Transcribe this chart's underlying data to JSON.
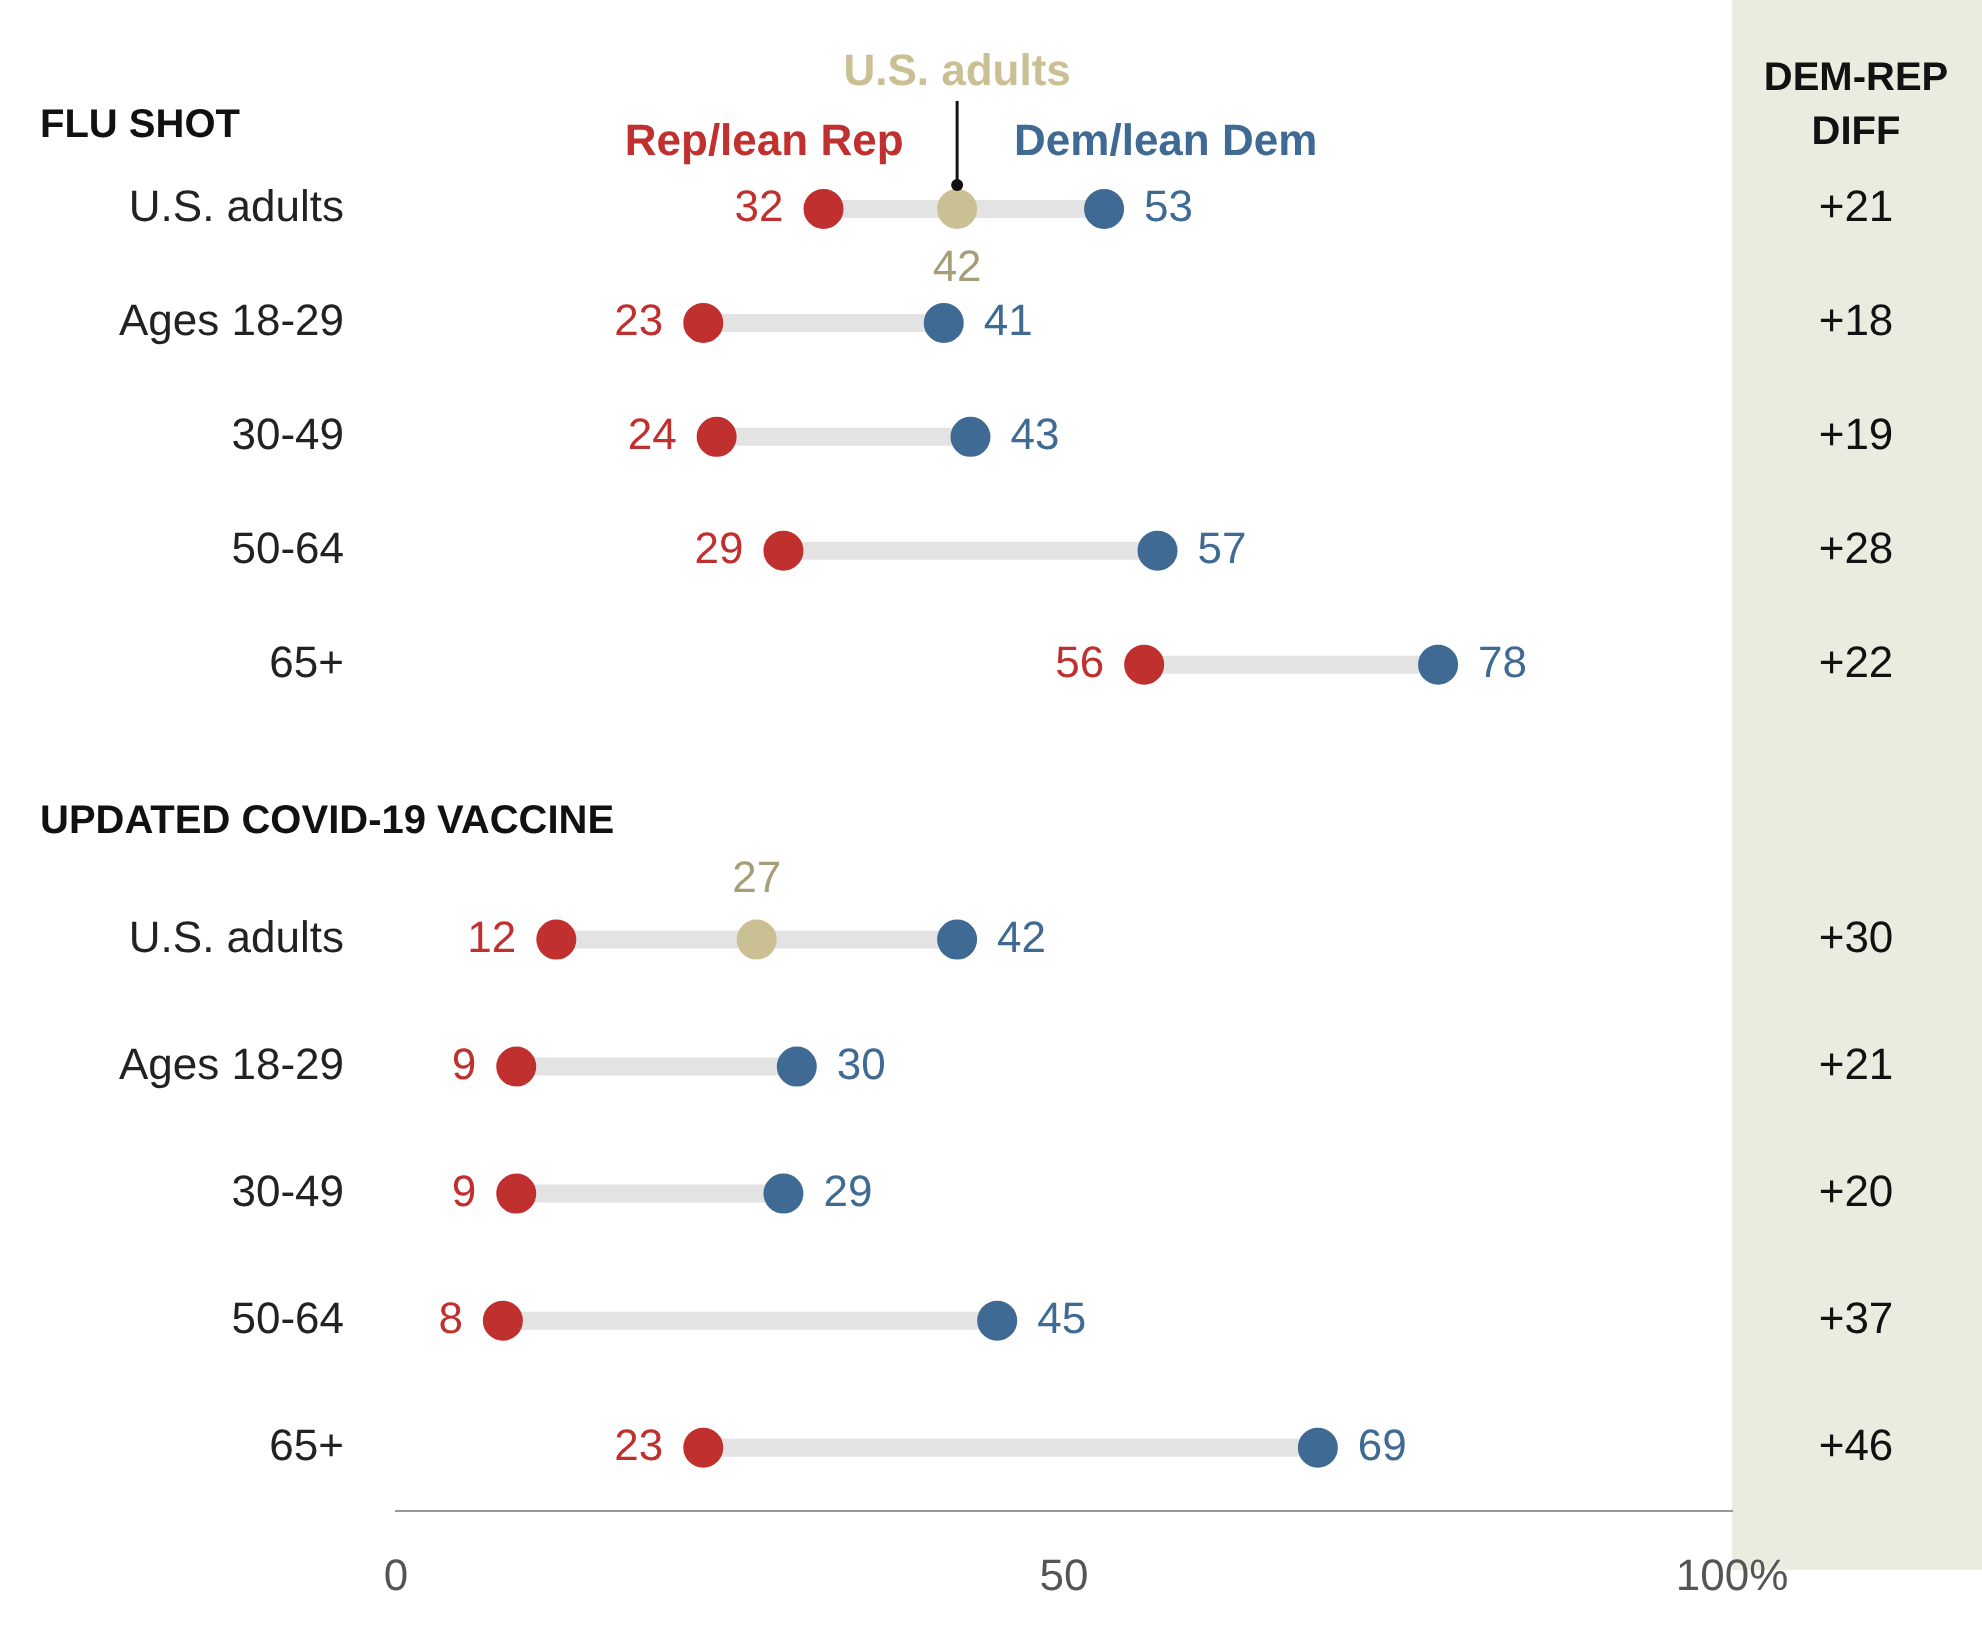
{
  "chart_data": [
    {
      "type": "scatter",
      "orientation": "horizontal",
      "title": "FLU SHOT",
      "categories": [
        "U.S. adults",
        "Ages 18-29",
        "30-49",
        "50-64",
        "65+"
      ],
      "series": [
        {
          "name": "Rep/lean Rep",
          "color": "#c0302e",
          "values": [
            32,
            23,
            24,
            29,
            56
          ]
        },
        {
          "name": "Dem/lean Dem",
          "color": "#3f6a93",
          "values": [
            53,
            41,
            43,
            57,
            78
          ]
        },
        {
          "name": "U.S. adults",
          "color": "#cbbf94",
          "values": [
            42,
            null,
            null,
            null,
            null
          ]
        }
      ],
      "xlim": [
        0,
        100
      ],
      "data_labels": true,
      "legend": "top",
      "tick_labels": "y",
      "grid": false,
      "y2label": "DEM-REP DIFF",
      "annotations": [
        "+21",
        "+18",
        "+19",
        "+28",
        "+22"
      ]
    },
    {
      "type": "scatter",
      "orientation": "horizontal",
      "title": "UPDATED COVID-19 VACCINE",
      "categories": [
        "U.S. adults",
        "Ages 18-29",
        "30-49",
        "50-64",
        "65+"
      ],
      "series": [
        {
          "color": "#c0302e",
          "values": [
            12,
            9,
            9,
            8,
            23
          ]
        },
        {
          "color": "#3f6a93",
          "values": [
            42,
            30,
            29,
            45,
            69
          ]
        },
        {
          "color": "#cbbf94",
          "values": [
            27,
            null,
            null,
            null,
            null
          ]
        }
      ],
      "xlim": [
        0,
        100
      ],
      "xticks": [
        0,
        50,
        {
          "value": 100,
          "label": "100%"
        }
      ],
      "data_labels": true,
      "grid": false,
      "annotations": [
        "+30",
        "+21",
        "+20",
        "+37",
        "+46"
      ]
    }
  ]
}
